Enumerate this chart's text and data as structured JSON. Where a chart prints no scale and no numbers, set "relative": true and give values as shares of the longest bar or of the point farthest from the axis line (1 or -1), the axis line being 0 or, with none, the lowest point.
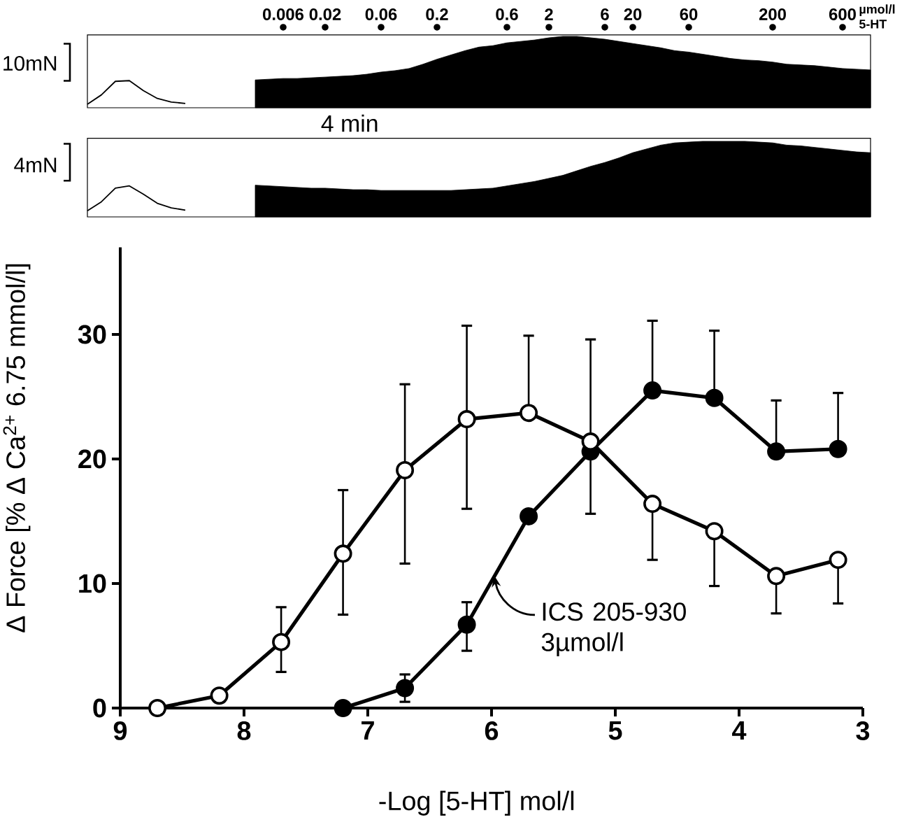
{
  "chart_data": [
    {
      "type": "area",
      "relative": true,
      "ylabel": "10mN",
      "xlabel": "µmol/l 5-HT",
      "tick_labels": "x",
      "annotations": [
        "4 min"
      ],
      "categories": [
        null,
        null,
        null,
        null,
        null,
        null,
        null,
        null,
        null,
        null,
        null,
        null,
        null,
        null,
        "0.006",
        null,
        null,
        "0.02",
        null,
        null,
        null,
        "0.06",
        null,
        null,
        null,
        "0.2",
        null,
        null,
        null,
        null,
        "0.6",
        null,
        null,
        "2",
        null,
        null,
        null,
        "6",
        null,
        "20",
        null,
        null,
        null,
        "60",
        null,
        null,
        null,
        null,
        null,
        "200",
        null,
        null,
        null,
        null,
        "600",
        null,
        null
      ],
      "series": [
        {
          "type": "line",
          "color": "#000000",
          "values": [
            0.05,
            0.18,
            0.37,
            0.38,
            0.24,
            0.13,
            0.08,
            0.06,
            null,
            null,
            null,
            null,
            null,
            null,
            null,
            null,
            null,
            null,
            null,
            null,
            null,
            null,
            null,
            null,
            null,
            null,
            null,
            null,
            null,
            null,
            null,
            null,
            null,
            null,
            null,
            null,
            null,
            null,
            null,
            null,
            null,
            null,
            null,
            null,
            null,
            null,
            null,
            null,
            null,
            null,
            null,
            null,
            null,
            null,
            null,
            null,
            null
          ]
        },
        {
          "type": "area",
          "color": "#000000",
          "values": [
            null,
            null,
            null,
            null,
            null,
            null,
            null,
            null,
            null,
            null,
            null,
            null,
            0.39,
            0.4,
            0.41,
            0.41,
            0.42,
            0.43,
            0.44,
            0.45,
            0.47,
            0.5,
            0.52,
            0.55,
            0.61,
            0.68,
            0.74,
            0.8,
            0.85,
            0.87,
            0.91,
            0.93,
            0.95,
            0.98,
            1.0,
            1.0,
            0.98,
            0.96,
            0.93,
            0.9,
            0.87,
            0.84,
            0.8,
            0.78,
            0.75,
            0.72,
            0.69,
            0.67,
            0.66,
            0.64,
            0.61,
            0.6,
            0.59,
            0.57,
            0.55,
            0.54,
            0.53
          ]
        }
      ]
    },
    {
      "type": "area",
      "relative": true,
      "ylabel": "4mN",
      "tick_labels": false,
      "categories": [
        null,
        null,
        null,
        null,
        null,
        null,
        null,
        null,
        null,
        null,
        null,
        null,
        null,
        null,
        null,
        null,
        null,
        null,
        null,
        null,
        null,
        null,
        null,
        null,
        null,
        null,
        null,
        null,
        null,
        null,
        null,
        null,
        null,
        null,
        null,
        null,
        null,
        null,
        null,
        null,
        null,
        null,
        null,
        null,
        null,
        null,
        null,
        null,
        null,
        null,
        null,
        null,
        null,
        null,
        null,
        null,
        null
      ],
      "series": [
        {
          "type": "line",
          "color": "#000000",
          "values": [
            0.08,
            0.2,
            0.38,
            0.41,
            0.3,
            0.18,
            0.12,
            0.09,
            null,
            null,
            null,
            null,
            null,
            null,
            null,
            null,
            null,
            null,
            null,
            null,
            null,
            null,
            null,
            null,
            null,
            null,
            null,
            null,
            null,
            null,
            null,
            null,
            null,
            null,
            null,
            null,
            null,
            null,
            null,
            null,
            null,
            null,
            null,
            null,
            null,
            null,
            null,
            null,
            null,
            null,
            null,
            null,
            null,
            null,
            null,
            null,
            null
          ]
        },
        {
          "type": "area",
          "color": "#000000",
          "values": [
            null,
            null,
            null,
            null,
            null,
            null,
            null,
            null,
            null,
            null,
            null,
            null,
            0.42,
            0.41,
            0.4,
            0.39,
            0.38,
            0.38,
            0.37,
            0.36,
            0.36,
            0.35,
            0.35,
            0.35,
            0.35,
            0.35,
            0.35,
            0.36,
            0.37,
            0.38,
            0.41,
            0.44,
            0.47,
            0.51,
            0.55,
            0.61,
            0.67,
            0.72,
            0.78,
            0.85,
            0.9,
            0.95,
            0.98,
            0.99,
            1.0,
            1.0,
            1.0,
            1.0,
            0.99,
            0.98,
            0.95,
            0.94,
            0.92,
            0.9,
            0.88,
            0.86,
            0.85
          ]
        }
      ]
    },
    {
      "type": "line",
      "xlabel": "-Log [5-HT] mol/l",
      "ylabel": "Δ Force [% Δ Ca$^{2+}$ 6.75 mmol/l]",
      "xlim": [
        9,
        3
      ],
      "xticks": [
        9,
        8,
        7,
        6,
        5,
        4,
        3
      ],
      "ylim": [
        0,
        37
      ],
      "yticks": [
        0,
        10,
        20,
        30
      ],
      "marker": "circle",
      "line_style": "solid",
      "series": [
        {
          "color": "#ffffff",
          "x": [
            8.7,
            8.2,
            7.7,
            7.2,
            6.7,
            6.2,
            5.7,
            5.2,
            4.7,
            4.2,
            3.7,
            3.2
          ],
          "values": [
            0,
            1.0,
            5.3,
            12.4,
            19.1,
            23.2,
            23.7,
            21.4,
            16.4,
            14.2,
            10.6,
            11.9
          ],
          "errors": [
            null,
            null,
            [
              2.9,
              8.1
            ],
            [
              7.5,
              17.5
            ],
            [
              11.6,
              26.0
            ],
            [
              16.0,
              30.7
            ],
            [
              23.7,
              29.9
            ],
            [
              15.6,
              29.6
            ],
            [
              11.9,
              16.4
            ],
            [
              9.8,
              14.2
            ],
            [
              7.6,
              10.6
            ],
            [
              8.4,
              11.9
            ]
          ]
        },
        {
          "name": "ICS 205-930 3µmol/l",
          "color": "#000000",
          "x": [
            7.2,
            6.7,
            6.2,
            5.7,
            5.2,
            4.7,
            4.2,
            3.7,
            3.2
          ],
          "values": [
            0,
            1.6,
            6.7,
            15.4,
            20.6,
            25.5,
            24.9,
            20.6,
            20.8
          ],
          "errors": [
            null,
            [
              0.5,
              2.7
            ],
            [
              4.6,
              8.5
            ],
            null,
            null,
            [
              25.5,
              31.1
            ],
            [
              24.9,
              30.3
            ],
            [
              20.6,
              24.7
            ],
            [
              20.8,
              25.3
            ]
          ]
        }
      ]
    }
  ]
}
